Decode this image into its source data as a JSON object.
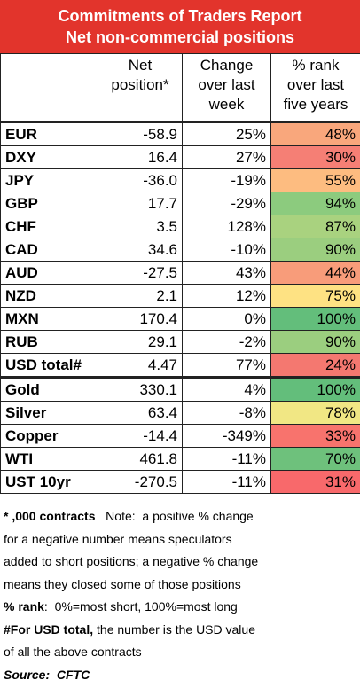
{
  "header": {
    "title": "Commitments of Traders Report",
    "subtitle": "Net non-commercial positions"
  },
  "table": {
    "columns": [
      [],
      [
        "Net",
        "position*"
      ],
      [
        "Change",
        "over last",
        "week"
      ],
      [
        "% rank",
        "over last",
        "five years"
      ]
    ],
    "groups": [
      [
        {
          "cells": [
            "EUR",
            "-58.9",
            "25%",
            "48%"
          ],
          "color": "#f9a77c"
        },
        {
          "cells": [
            "DXY",
            "16.4",
            "27%",
            "30%"
          ],
          "color": "#f57f75"
        },
        {
          "cells": [
            "JPY",
            "-36.0",
            "-19%",
            "55%"
          ],
          "color": "#fdbc80"
        },
        {
          "cells": [
            "GBP",
            "17.7",
            "-29%",
            "94%"
          ],
          "color": "#8ccb7e"
        },
        {
          "cells": [
            "CHF",
            "3.5",
            "128%",
            "87%"
          ],
          "color": "#a9d27f"
        },
        {
          "cells": [
            "CAD",
            "34.6",
            "-10%",
            "90%"
          ],
          "color": "#9bce7f"
        },
        {
          "cells": [
            "AUD",
            "-27.5",
            "43%",
            "44%"
          ],
          "color": "#f89c7a"
        },
        {
          "cells": [
            "NZD",
            "2.1",
            "12%",
            "75%"
          ],
          "color": "#fee283"
        },
        {
          "cells": [
            "MXN",
            "170.4",
            "0%",
            "100%"
          ],
          "color": "#63be7b"
        },
        {
          "cells": [
            "RUB",
            "29.1",
            "-2%",
            "90%"
          ],
          "color": "#9bce7f"
        },
        {
          "cells": [
            "USD total#",
            "4.47",
            "77%",
            "24%"
          ],
          "color": "#f47870"
        }
      ],
      [
        {
          "cells": [
            "Gold",
            "330.1",
            "4%",
            "100%"
          ],
          "color": "#63be7b"
        },
        {
          "cells": [
            "Silver",
            "63.4",
            "-8%",
            "78%"
          ],
          "color": "#f1e784"
        },
        {
          "cells": [
            "Copper",
            "-14.4",
            "-349%",
            "33%"
          ],
          "color": "#f8736d"
        },
        {
          "cells": [
            "WTI",
            "461.8",
            "-11%",
            "70%"
          ],
          "color": "#6ec17c"
        },
        {
          "cells": [
            "UST 10yr",
            "-270.5",
            "-11%",
            "31%"
          ],
          "color": "#f8696b"
        }
      ]
    ]
  },
  "footnotes": [
    [
      {
        "text": "* ,000 contracts",
        "style": "bold"
      },
      {
        "text": "   Note:  a positive % change"
      }
    ],
    [
      {
        "text": "for a negative number means speculators"
      }
    ],
    [
      {
        "text": "added to short positions; a negative % change"
      }
    ],
    [
      {
        "text": "means they closed some of those positions"
      }
    ],
    [
      {
        "text": "% rank",
        "style": "bold"
      },
      {
        "text": ":  0%=most short, 100%=most long"
      }
    ],
    [
      {
        "text": "#For ",
        "style": "bold"
      },
      {
        "text": "USD total,",
        "style": "bold"
      },
      {
        "text": " the number is the USD value"
      }
    ],
    [
      {
        "text": "of all the above contracts"
      }
    ],
    [
      {
        "text": "Source:  CFTC",
        "style": "bold-italic"
      }
    ]
  ]
}
